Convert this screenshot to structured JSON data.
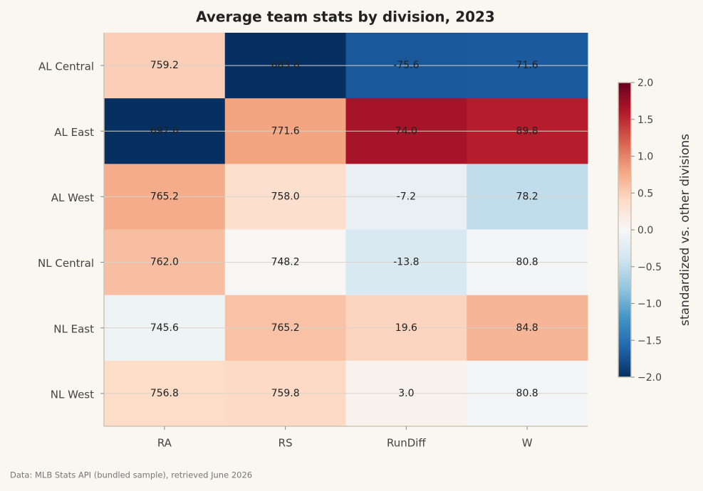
{
  "chart_data": {
    "type": "heatmap",
    "title": "Average team stats by division, 2023",
    "rows": [
      "AL Central",
      "AL East",
      "AL West",
      "NL Central",
      "NL East",
      "NL West"
    ],
    "columns": [
      "RA",
      "RS",
      "RunDiff",
      "W"
    ],
    "values": [
      [
        759.2,
        683.6,
        -75.6,
        71.6
      ],
      [
        697.6,
        771.6,
        74.0,
        89.8
      ],
      [
        765.2,
        758.0,
        -7.2,
        78.2
      ],
      [
        762.0,
        748.2,
        -13.8,
        80.8
      ],
      [
        745.6,
        765.2,
        19.6,
        84.8
      ],
      [
        756.8,
        759.8,
        3.0,
        80.8
      ]
    ],
    "value_labels": [
      [
        "759.2",
        "683.6",
        "-75.6",
        "71.6"
      ],
      [
        "697.6",
        "771.6",
        "74.0",
        "89.8"
      ],
      [
        "765.2",
        "758.0",
        "-7.2",
        "78.2"
      ],
      [
        "762.0",
        "748.2",
        "-13.8",
        "80.8"
      ],
      [
        "745.6",
        "765.2",
        "19.6",
        "84.8"
      ],
      [
        "756.8",
        "759.8",
        "3.0",
        "80.8"
      ]
    ],
    "standardize": "column",
    "colormap": "RdBu_r",
    "colorbar_label": "standardized vs. other divisions",
    "clim": [
      -2,
      2
    ],
    "cticks": [
      {
        "value": -2,
        "label": "−2.0"
      },
      {
        "value": -1.5,
        "label": "−1.5"
      },
      {
        "value": -1,
        "label": "−1.0"
      },
      {
        "value": -0.5,
        "label": "−0.5"
      },
      {
        "value": 0,
        "label": "0.0"
      },
      {
        "value": 0.5,
        "label": "0.5"
      },
      {
        "value": 1,
        "label": "1.0"
      },
      {
        "value": 1.5,
        "label": "1.5"
      },
      {
        "value": 2,
        "label": "2.0"
      }
    ],
    "grid": true,
    "note": "Data: MLB Stats API (bundled sample), retrieved June 2026"
  }
}
